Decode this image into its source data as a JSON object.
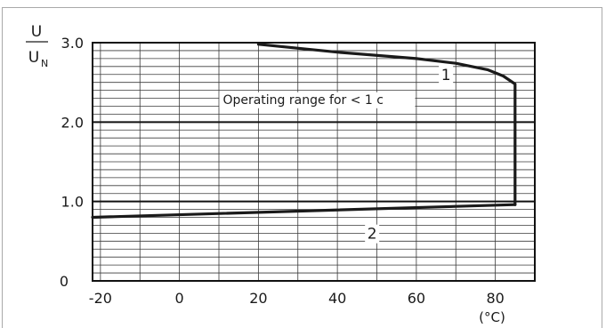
{
  "chart_data": {
    "type": "line",
    "title": "",
    "xlabel": "(°C)",
    "ylabel": {
      "numerator": "U",
      "denominator": "U",
      "denominator_subscript": "N"
    },
    "xlim": [
      -22,
      90
    ],
    "ylim": [
      0,
      3.0
    ],
    "grid": true,
    "x_ticks": [
      {
        "value": -20,
        "label": "-20"
      },
      {
        "value": 0,
        "label": "0"
      },
      {
        "value": 20,
        "label": "20"
      },
      {
        "value": 40,
        "label": "40"
      },
      {
        "value": 60,
        "label": "60"
      },
      {
        "value": 80,
        "label": "80"
      }
    ],
    "y_ticks": [
      {
        "value": 0,
        "label": "0"
      },
      {
        "value": 1.0,
        "label": "1.0"
      },
      {
        "value": 2.0,
        "label": "2.0"
      },
      {
        "value": 3.0,
        "label": "3.0"
      }
    ],
    "series": [
      {
        "name": "1",
        "color": "#1a1a1a",
        "points": [
          {
            "x": 20,
            "y": 2.98
          },
          {
            "x": 40,
            "y": 2.88
          },
          {
            "x": 60,
            "y": 2.8
          },
          {
            "x": 70,
            "y": 2.74
          },
          {
            "x": 78,
            "y": 2.66
          },
          {
            "x": 82,
            "y": 2.58
          },
          {
            "x": 85,
            "y": 2.48
          },
          {
            "x": 85,
            "y": 0.96
          }
        ]
      },
      {
        "name": "2",
        "color": "#1a1a1a",
        "points": [
          {
            "x": -22,
            "y": 0.8
          },
          {
            "x": 85,
            "y": 0.96
          }
        ]
      }
    ],
    "annotations": [
      {
        "text": "Operating range for < 1 c",
        "x": 11,
        "y": 2.23
      },
      {
        "text": "1",
        "x": 67.5,
        "y": 2.53
      },
      {
        "text": "2",
        "x": 48.8,
        "y": 0.53
      }
    ]
  }
}
